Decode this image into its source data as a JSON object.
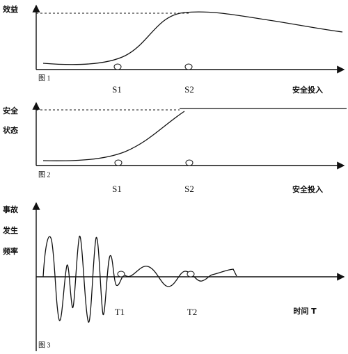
{
  "figure1": {
    "y_label": "效益",
    "caption": "图 1",
    "markers": [
      "S1",
      "S2"
    ],
    "x_label": "安全投入"
  },
  "figure2": {
    "y_label_lines": [
      "安全",
      "状态"
    ],
    "caption": "图 2",
    "markers": [
      "S1",
      "S2"
    ],
    "x_label": "安全投入"
  },
  "figure3": {
    "y_label_lines": [
      "事故",
      "发生",
      "频率"
    ],
    "caption": "图 3",
    "markers": [
      "T1",
      "T2"
    ],
    "x_label": "时间 T"
  }
}
